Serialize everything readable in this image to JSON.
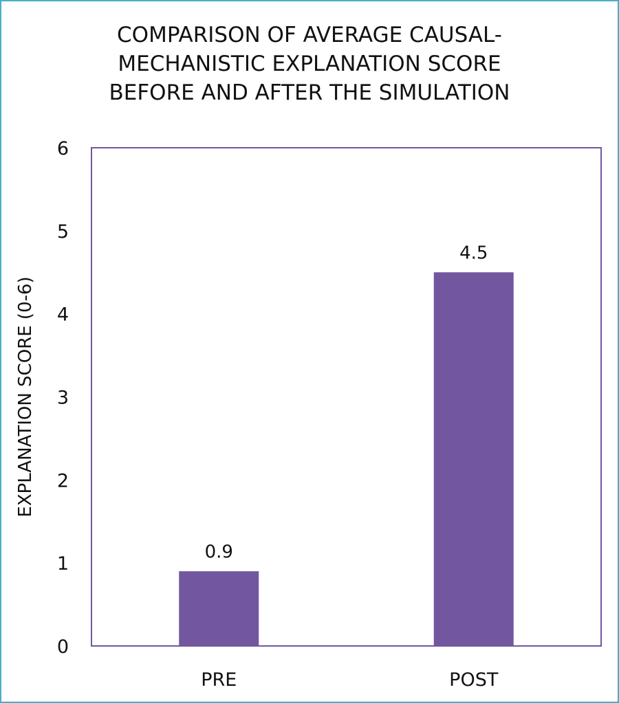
{
  "chart_data": {
    "type": "bar",
    "title_lines": [
      "COMPARISON OF AVERAGE CAUSAL-",
      "MECHANISTIC EXPLANATION SCORE",
      "BEFORE AND AFTER THE SIMULATION"
    ],
    "categories": [
      "PRE",
      "POST"
    ],
    "values": [
      0.9,
      4.5
    ],
    "data_labels": [
      "0.9",
      "4.5"
    ],
    "xlabel": "",
    "ylabel": "EXPLANATION SCORE (0-6)",
    "ylim": [
      0,
      6
    ],
    "yticks": [
      "0",
      "1",
      "2",
      "3",
      "4",
      "5",
      "6"
    ],
    "grid": false,
    "bar_color": "#7257a0",
    "frame_color": "#7257a0",
    "border_color": "#4bacc6"
  }
}
